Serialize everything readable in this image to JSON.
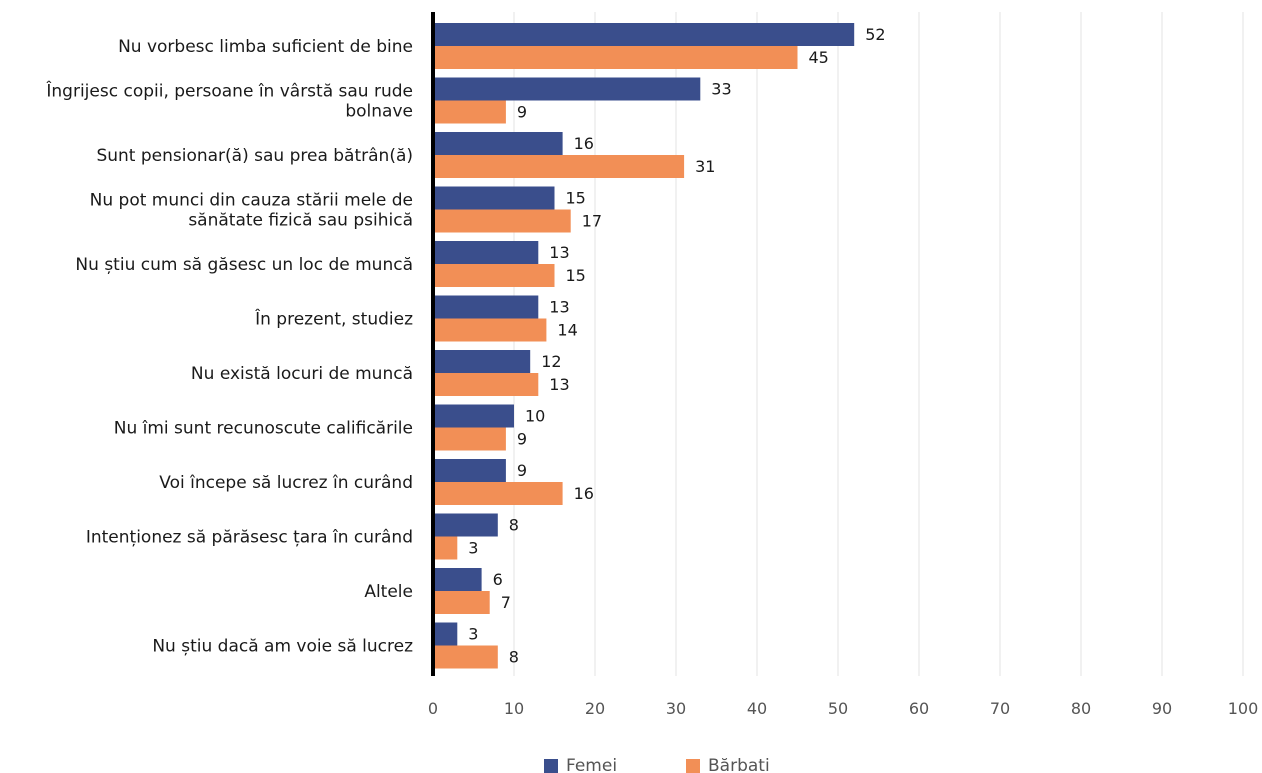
{
  "chart_data": {
    "type": "bar",
    "orientation": "horizontal",
    "categories": [
      "Nu vorbesc limba suficient de bine",
      "Îngrijesc copii, persoane în vârstă sau rude bolnave",
      "Sunt pensionar(ă) sau prea bătrân(ă)",
      "Nu pot munci din cauza stării mele de sănătate fizică sau psihică",
      "Nu știu cum să găsesc un loc de muncă",
      "În prezent, studiez",
      "Nu există locuri de muncă",
      "Nu îmi sunt recunoscute calificările",
      "Voi începe să lucrez în curând",
      "Intenționez să părăsesc țara în curând",
      "Altele",
      "Nu știu dacă am voie să lucrez"
    ],
    "category_lines": [
      [
        "Nu vorbesc limba suficient de bine"
      ],
      [
        "Îngrijesc copii, persoane în vârstă sau rude",
        "bolnave"
      ],
      [
        "Sunt pensionar(ă) sau prea bătrân(ă)"
      ],
      [
        "Nu pot munci din cauza stării mele de",
        "sănătate fizică sau psihică"
      ],
      [
        "Nu știu cum să găsesc un loc de muncă"
      ],
      [
        "În prezent, studiez"
      ],
      [
        "Nu există locuri de muncă"
      ],
      [
        "Nu îmi sunt recunoscute calificările"
      ],
      [
        "Voi începe să lucrez în curând"
      ],
      [
        "Intenționez să părăsesc țara în curând"
      ],
      [
        "Altele"
      ],
      [
        "Nu știu dacă am voie să lucrez"
      ]
    ],
    "series": [
      {
        "name": "Femei",
        "color": "#3a4e8c",
        "values": [
          52,
          33,
          16,
          15,
          13,
          13,
          12,
          10,
          9,
          8,
          6,
          3
        ]
      },
      {
        "name": "Bărbati",
        "color": "#f28f56",
        "values": [
          45,
          9,
          31,
          17,
          15,
          14,
          13,
          9,
          16,
          3,
          7,
          8
        ]
      }
    ],
    "xlim": [
      0,
      100
    ],
    "xticks": [
      0,
      10,
      20,
      30,
      40,
      50,
      60,
      70,
      80,
      90,
      100
    ],
    "grid": "vertical",
    "legend": "bottom-center",
    "title": "",
    "xlabel": "",
    "ylabel": ""
  }
}
